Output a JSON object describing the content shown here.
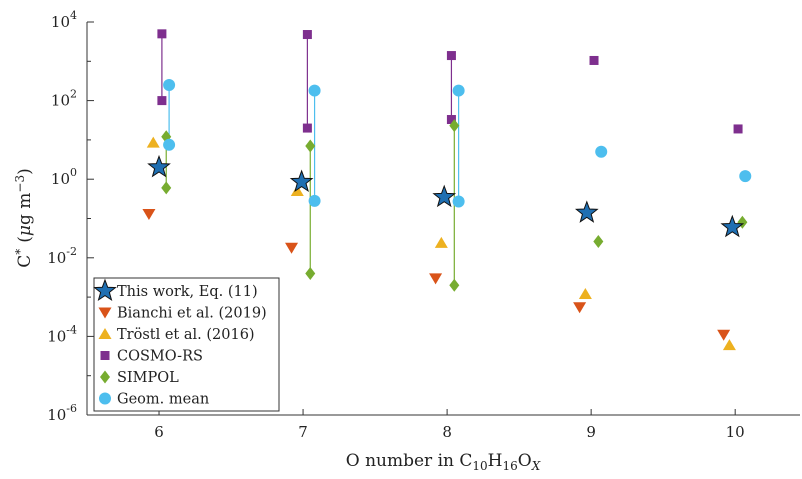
{
  "chart_data": {
    "type": "scatter",
    "x_axis": {
      "label_main": "O number in C",
      "label_sub1": "10",
      "label_mid1": "H",
      "label_sub2": "16",
      "label_mid2": "O",
      "label_sub3": "X",
      "range": [
        5.5,
        10.45
      ],
      "ticks": [
        6,
        7,
        8,
        9,
        10
      ],
      "tick_labels": [
        "6",
        "7",
        "8",
        "9",
        "10"
      ]
    },
    "y_axis": {
      "label_main": "C",
      "label_sup": "*",
      "label_unit_pre": "(",
      "label_mu": "μ",
      "label_unit_mid": "g m",
      "label_unit_sup": "−3",
      "label_unit_post": ")",
      "scale": "log",
      "range_exponent": [
        -6,
        4
      ],
      "tick_exponents": [
        -6,
        -4,
        -2,
        0,
        2,
        4
      ],
      "tick_base": "10",
      "tick_exp_labels": [
        "-6",
        "-4",
        "-2",
        "0",
        "2",
        "4"
      ]
    },
    "legend_position": "bottom-left",
    "series": [
      {
        "name": "This work, Eq. (11)",
        "marker": "star",
        "color": "#1f6fb2",
        "points": [
          [
            6.0,
            2.0
          ],
          [
            6.99,
            0.85
          ],
          [
            7.98,
            0.35
          ],
          [
            8.97,
            0.14
          ],
          [
            9.98,
            0.06
          ]
        ]
      },
      {
        "name": "Bianchi et al. (2019)",
        "marker": "triangle-down",
        "color": "#d95319",
        "points": [
          [
            5.93,
            0.13
          ],
          [
            6.92,
            0.018
          ],
          [
            7.92,
            0.003
          ],
          [
            8.92,
            0.00055
          ],
          [
            9.92,
            0.00011
          ]
        ]
      },
      {
        "name": "Tröstl et al. (2016)",
        "marker": "triangle-up",
        "color": "#edb120",
        "points": [
          [
            5.96,
            8.5
          ],
          [
            6.96,
            0.5
          ],
          [
            7.96,
            0.024
          ],
          [
            8.96,
            0.0012
          ],
          [
            9.96,
            6e-05
          ]
        ]
      },
      {
        "name": "COSMO-RS",
        "marker": "square",
        "color": "#7e2f8e",
        "points": [
          [
            6.02,
            100
          ],
          [
            6.02,
            5000
          ],
          [
            7.03,
            20
          ],
          [
            7.03,
            4800
          ],
          [
            8.03,
            33
          ],
          [
            8.03,
            1400
          ],
          [
            9.02,
            1050
          ],
          [
            10.02,
            19
          ]
        ]
      },
      {
        "name": "SIMPOL",
        "marker": "diamond",
        "color": "#77ac30",
        "points": [
          [
            6.05,
            12
          ],
          [
            6.05,
            0.6
          ],
          [
            7.05,
            7
          ],
          [
            7.05,
            0.004
          ],
          [
            8.05,
            23
          ],
          [
            8.05,
            0.002
          ],
          [
            9.05,
            0.026
          ],
          [
            10.05,
            0.08
          ]
        ]
      },
      {
        "name": "Geom. mean",
        "marker": "circle",
        "color": "#4dbeee",
        "points": [
          [
            6.07,
            7.5
          ],
          [
            6.07,
            250
          ],
          [
            7.08,
            0.28
          ],
          [
            7.08,
            180
          ],
          [
            8.08,
            0.27
          ],
          [
            8.08,
            180
          ],
          [
            9.07,
            5
          ],
          [
            10.07,
            1.2
          ]
        ]
      }
    ],
    "connectors": [
      {
        "x": 6.02,
        "y": [
          100,
          5000
        ],
        "color": "#7e2f8e"
      },
      {
        "x": 7.03,
        "y": [
          20,
          4800
        ],
        "color": "#7e2f8e"
      },
      {
        "x": 8.03,
        "y": [
          33,
          1400
        ],
        "color": "#7e2f8e"
      },
      {
        "x": 6.05,
        "y": [
          0.6,
          12
        ],
        "color": "#77ac30"
      },
      {
        "x": 7.05,
        "y": [
          0.004,
          7
        ],
        "color": "#77ac30"
      },
      {
        "x": 8.05,
        "y": [
          0.002,
          23
        ],
        "color": "#77ac30"
      },
      {
        "x": 6.07,
        "y": [
          7.5,
          250
        ],
        "color": "#4dbeee"
      },
      {
        "x": 7.08,
        "y": [
          0.28,
          180
        ],
        "color": "#4dbeee"
      },
      {
        "x": 8.08,
        "y": [
          0.27,
          180
        ],
        "color": "#4dbeee"
      }
    ]
  }
}
